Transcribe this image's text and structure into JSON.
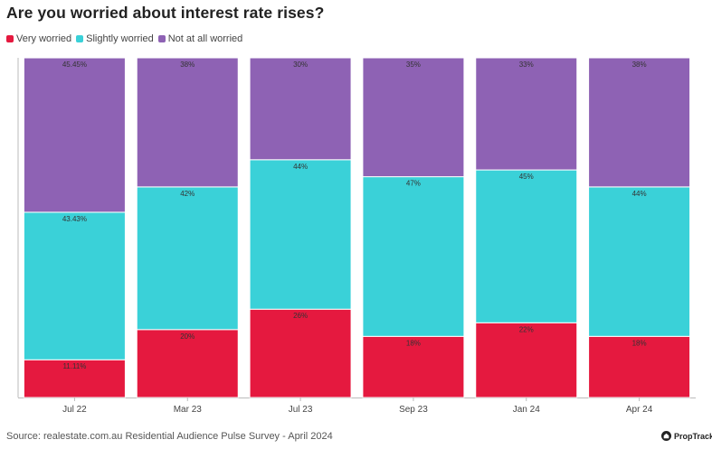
{
  "header": {
    "title": "Are you worried about interest rate rises?"
  },
  "footer": {
    "source": "Source: realestate.com.au Residential Audience Pulse Survey - April 2024",
    "brand": "PropTrack"
  },
  "chart_data": {
    "type": "bar",
    "stacked": true,
    "title": "Are you worried about interest rate rises?",
    "xlabel": "",
    "ylabel": "",
    "ylim": [
      0,
      100
    ],
    "grid": false,
    "legend_position": "top-left",
    "categories": [
      "Jul 22",
      "Mar 23",
      "Jul 23",
      "Sep 23",
      "Jan 24",
      "Apr 24"
    ],
    "series": [
      {
        "name": "Very worried",
        "color": "#e5193f",
        "values": [
          11.11,
          20,
          26,
          18,
          22,
          18
        ],
        "labels": [
          "11.11%",
          "20%",
          "26%",
          "18%",
          "22%",
          "18%"
        ]
      },
      {
        "name": "Slightly worried",
        "color": "#3ad1d8",
        "values": [
          43.43,
          42,
          44,
          47,
          45,
          44
        ],
        "labels": [
          "43.43%",
          "42%",
          "44%",
          "47%",
          "45%",
          "44%"
        ]
      },
      {
        "name": "Not at all worried",
        "color": "#8e62b4",
        "values": [
          45.45,
          38,
          30,
          35,
          33,
          38
        ],
        "labels": [
          "45.45%",
          "38%",
          "30%",
          "35%",
          "33%",
          "38%"
        ]
      }
    ]
  }
}
